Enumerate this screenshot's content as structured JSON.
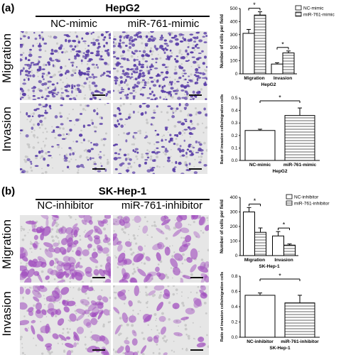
{
  "panel_a": {
    "tag": "(a)",
    "cell_line": "HepG2",
    "columns": [
      "NC-mimic",
      "miR-761-mimic"
    ],
    "rows": [
      "Migration",
      "Invasion"
    ],
    "image_style": "sparse",
    "stain_color": "#5b3fa8"
  },
  "panel_b": {
    "tag": "(b)",
    "cell_line": "SK-Hep-1",
    "columns": [
      "NC-inhibitor",
      "miR-761-inhibitor"
    ],
    "rows": [
      "Migration",
      "Invasion"
    ],
    "image_style": "dense",
    "stain_color": "#a04cbe"
  },
  "chart_data": [
    {
      "type": "bar",
      "title": "HepG2",
      "categories": [
        "Migration",
        "Invasion"
      ],
      "series": [
        {
          "name": "NC-mimic",
          "values": [
            310,
            75
          ],
          "errors": [
            30,
            10
          ],
          "fill": "white"
        },
        {
          "name": "miR-761-mimic",
          "values": [
            450,
            160
          ],
          "errors": [
            25,
            15
          ],
          "fill": "hatched"
        }
      ],
      "ylabel": "Number of cells per field",
      "yticks": [
        "0",
        "100",
        "200",
        "300",
        "400",
        "500"
      ],
      "ylim": [
        0,
        500
      ],
      "significance": [
        "*",
        "*"
      ],
      "legend": "top-right"
    },
    {
      "type": "bar",
      "title": "HepG2",
      "categories": [
        "NC-mimic",
        "miR-761-mimic"
      ],
      "values": [
        0.24,
        0.36
      ],
      "errors": [
        0.01,
        0.06
      ],
      "fills": [
        "white",
        "hatched"
      ],
      "ylabel": "Ratio of invasion cells/migration cells",
      "yticks": [
        "0.0",
        "0.1",
        "0.2",
        "0.3",
        "0.4",
        "0.5"
      ],
      "ylim": [
        0,
        0.5
      ],
      "significance": "*"
    },
    {
      "type": "bar",
      "title": "SK-Hep-1",
      "categories": [
        "Migration",
        "Invasion"
      ],
      "series": [
        {
          "name": "NC-inhibitor",
          "values": [
            300,
            135
          ],
          "errors": [
            30,
            30
          ],
          "fill": "white"
        },
        {
          "name": "miR-761-inhibitor",
          "values": [
            160,
            72
          ],
          "errors": [
            30,
            8
          ],
          "fill": "hatched"
        }
      ],
      "ylabel": "Number of cells per field",
      "yticks": [
        "0",
        "100",
        "200",
        "300",
        "400"
      ],
      "ylim": [
        0,
        400
      ],
      "significance": [
        "*",
        "*"
      ],
      "legend": "top-right"
    },
    {
      "type": "bar",
      "title": "SK-Hep-1",
      "categories": [
        "NC-inhibitor",
        "miR-761-inhibitor"
      ],
      "values": [
        0.55,
        0.45
      ],
      "errors": [
        0.03,
        0.1
      ],
      "fills": [
        "white",
        "hatched"
      ],
      "ylabel": "Ratio of invasion cells/migration cells",
      "yticks": [
        "0.0",
        "0.2",
        "0.4",
        "0.6",
        "0.8"
      ],
      "ylim": [
        0,
        0.8
      ],
      "significance": "*"
    }
  ]
}
